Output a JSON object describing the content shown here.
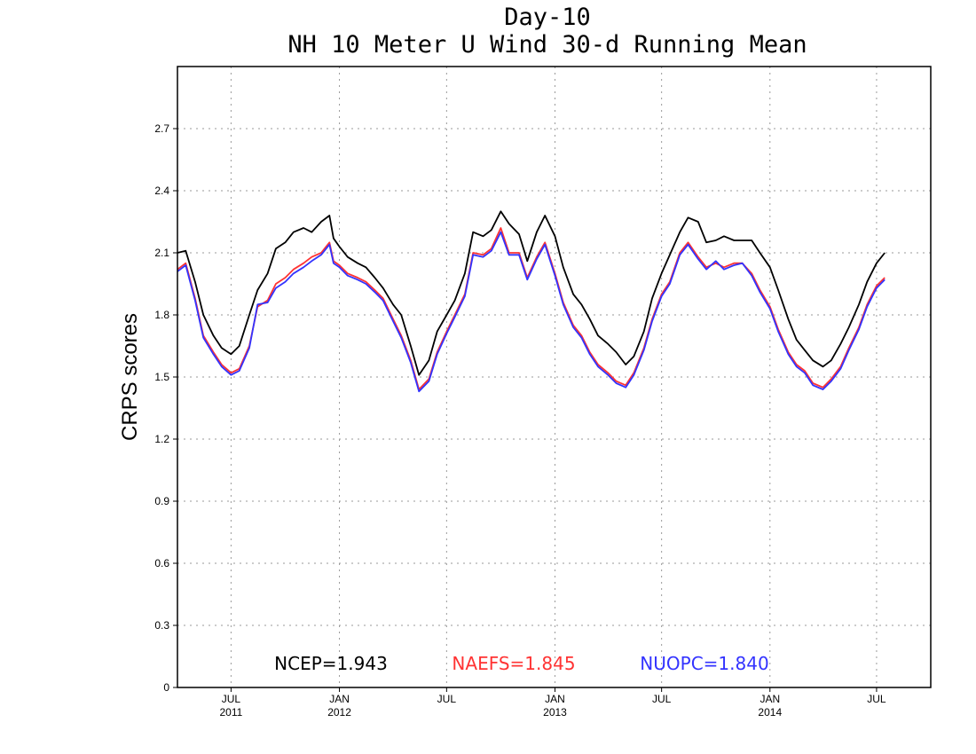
{
  "chart_data": {
    "type": "line",
    "title": "Day-10",
    "subtitle": "NH 10 Meter U Wind 30-d Running Mean",
    "ylabel": "CRPS scores",
    "xlabel": "",
    "ylim": [
      0,
      3.0
    ],
    "yticks": [
      0,
      0.3,
      0.6,
      0.9,
      1.2,
      1.5,
      1.8,
      2.1,
      2.4,
      2.7
    ],
    "ytick_labels": [
      "0",
      "0.3",
      "0.6",
      "0.9",
      "1.2",
      "1.5",
      "1.8",
      "2.1",
      "2.4",
      "2.7"
    ],
    "xlim": [
      "2011-04-01",
      "2014-10-01"
    ],
    "xticks": [
      {
        "date": "2011-07-01",
        "label": "JUL",
        "year": "2011"
      },
      {
        "date": "2012-01-01",
        "label": "JAN",
        "year": "2012"
      },
      {
        "date": "2012-07-01",
        "label": "JUL",
        "year": ""
      },
      {
        "date": "2013-01-01",
        "label": "JAN",
        "year": "2013"
      },
      {
        "date": "2013-07-01",
        "label": "JUL",
        "year": ""
      },
      {
        "date": "2014-01-01",
        "label": "JAN",
        "year": "2014"
      },
      {
        "date": "2014-07-01",
        "label": "JUL",
        "year": ""
      }
    ],
    "grid": true,
    "legend_position": "bottom",
    "series": [
      {
        "name": "NCEP",
        "legend_label": "NCEP=1.943",
        "color": "#000000",
        "points": [
          [
            "2011-04-01",
            2.1
          ],
          [
            "2011-04-15",
            2.11
          ],
          [
            "2011-05-01",
            1.96
          ],
          [
            "2011-05-15",
            1.8
          ],
          [
            "2011-06-01",
            1.7
          ],
          [
            "2011-06-15",
            1.64
          ],
          [
            "2011-07-01",
            1.61
          ],
          [
            "2011-07-15",
            1.65
          ],
          [
            "2011-08-01",
            1.8
          ],
          [
            "2011-08-15",
            1.92
          ],
          [
            "2011-09-01",
            2.0
          ],
          [
            "2011-09-15",
            2.12
          ],
          [
            "2011-10-01",
            2.15
          ],
          [
            "2011-10-15",
            2.2
          ],
          [
            "2011-11-01",
            2.22
          ],
          [
            "2011-11-15",
            2.2
          ],
          [
            "2011-12-01",
            2.25
          ],
          [
            "2011-12-15",
            2.28
          ],
          [
            "2011-12-22",
            2.17
          ],
          [
            "2012-01-01",
            2.13
          ],
          [
            "2012-01-15",
            2.08
          ],
          [
            "2012-02-01",
            2.05
          ],
          [
            "2012-02-15",
            2.03
          ],
          [
            "2012-03-01",
            1.98
          ],
          [
            "2012-03-15",
            1.93
          ],
          [
            "2012-04-01",
            1.85
          ],
          [
            "2012-04-15",
            1.8
          ],
          [
            "2012-05-01",
            1.65
          ],
          [
            "2012-05-15",
            1.51
          ],
          [
            "2012-06-01",
            1.58
          ],
          [
            "2012-06-15",
            1.72
          ],
          [
            "2012-07-01",
            1.8
          ],
          [
            "2012-07-15",
            1.87
          ],
          [
            "2012-08-01",
            2.0
          ],
          [
            "2012-08-15",
            2.2
          ],
          [
            "2012-09-01",
            2.18
          ],
          [
            "2012-09-15",
            2.21
          ],
          [
            "2012-10-01",
            2.3
          ],
          [
            "2012-10-15",
            2.24
          ],
          [
            "2012-11-01",
            2.19
          ],
          [
            "2012-11-15",
            2.06
          ],
          [
            "2012-12-01",
            2.2
          ],
          [
            "2012-12-15",
            2.28
          ],
          [
            "2013-01-01",
            2.18
          ],
          [
            "2013-01-15",
            2.03
          ],
          [
            "2013-02-01",
            1.9
          ],
          [
            "2013-02-15",
            1.85
          ],
          [
            "2013-03-01",
            1.78
          ],
          [
            "2013-03-15",
            1.7
          ],
          [
            "2013-04-01",
            1.66
          ],
          [
            "2013-04-15",
            1.62
          ],
          [
            "2013-05-01",
            1.56
          ],
          [
            "2013-05-15",
            1.6
          ],
          [
            "2013-06-01",
            1.72
          ],
          [
            "2013-06-15",
            1.88
          ],
          [
            "2013-07-01",
            2.0
          ],
          [
            "2013-07-15",
            2.09
          ],
          [
            "2013-08-01",
            2.2
          ],
          [
            "2013-08-15",
            2.27
          ],
          [
            "2013-09-01",
            2.25
          ],
          [
            "2013-09-15",
            2.15
          ],
          [
            "2013-10-01",
            2.16
          ],
          [
            "2013-10-15",
            2.18
          ],
          [
            "2013-11-01",
            2.16
          ],
          [
            "2013-11-15",
            2.16
          ],
          [
            "2013-12-01",
            2.16
          ],
          [
            "2013-12-15",
            2.1
          ],
          [
            "2014-01-01",
            2.03
          ],
          [
            "2014-01-15",
            1.92
          ],
          [
            "2014-02-01",
            1.78
          ],
          [
            "2014-02-15",
            1.68
          ],
          [
            "2014-03-01",
            1.63
          ],
          [
            "2014-03-15",
            1.58
          ],
          [
            "2014-04-01",
            1.55
          ],
          [
            "2014-04-15",
            1.58
          ],
          [
            "2014-05-01",
            1.66
          ],
          [
            "2014-05-15",
            1.74
          ],
          [
            "2014-06-01",
            1.85
          ],
          [
            "2014-06-15",
            1.96
          ],
          [
            "2014-07-01",
            2.05
          ],
          [
            "2014-07-15",
            2.1
          ]
        ]
      },
      {
        "name": "NAEFS",
        "legend_label": "NAEFS=1.845",
        "color": "#ff3333",
        "points": [
          [
            "2011-04-01",
            2.02
          ],
          [
            "2011-04-15",
            2.05
          ],
          [
            "2011-05-01",
            1.88
          ],
          [
            "2011-05-15",
            1.7
          ],
          [
            "2011-06-01",
            1.62
          ],
          [
            "2011-06-15",
            1.56
          ],
          [
            "2011-07-01",
            1.52
          ],
          [
            "2011-07-15",
            1.54
          ],
          [
            "2011-08-01",
            1.65
          ],
          [
            "2011-08-15",
            1.84
          ],
          [
            "2011-09-01",
            1.87
          ],
          [
            "2011-09-15",
            1.95
          ],
          [
            "2011-10-01",
            1.98
          ],
          [
            "2011-10-15",
            2.02
          ],
          [
            "2011-11-01",
            2.05
          ],
          [
            "2011-11-15",
            2.08
          ],
          [
            "2011-12-01",
            2.1
          ],
          [
            "2011-12-15",
            2.15
          ],
          [
            "2011-12-22",
            2.06
          ],
          [
            "2012-01-01",
            2.04
          ],
          [
            "2012-01-15",
            2.0
          ],
          [
            "2012-02-01",
            1.98
          ],
          [
            "2012-02-15",
            1.96
          ],
          [
            "2012-03-01",
            1.92
          ],
          [
            "2012-03-15",
            1.88
          ],
          [
            "2012-04-01",
            1.78
          ],
          [
            "2012-04-15",
            1.7
          ],
          [
            "2012-05-01",
            1.58
          ],
          [
            "2012-05-15",
            1.44
          ],
          [
            "2012-06-01",
            1.49
          ],
          [
            "2012-06-15",
            1.62
          ],
          [
            "2012-07-01",
            1.72
          ],
          [
            "2012-07-15",
            1.8
          ],
          [
            "2012-08-01",
            1.9
          ],
          [
            "2012-08-15",
            2.1
          ],
          [
            "2012-09-01",
            2.09
          ],
          [
            "2012-09-15",
            2.12
          ],
          [
            "2012-10-01",
            2.22
          ],
          [
            "2012-10-15",
            2.1
          ],
          [
            "2012-11-01",
            2.1
          ],
          [
            "2012-11-15",
            1.98
          ],
          [
            "2012-12-01",
            2.08
          ],
          [
            "2012-12-15",
            2.15
          ],
          [
            "2013-01-01",
            2.0
          ],
          [
            "2013-01-15",
            1.86
          ],
          [
            "2013-02-01",
            1.75
          ],
          [
            "2013-02-15",
            1.7
          ],
          [
            "2013-03-01",
            1.62
          ],
          [
            "2013-03-15",
            1.56
          ],
          [
            "2013-04-01",
            1.52
          ],
          [
            "2013-04-15",
            1.48
          ],
          [
            "2013-05-01",
            1.46
          ],
          [
            "2013-05-15",
            1.52
          ],
          [
            "2013-06-01",
            1.64
          ],
          [
            "2013-06-15",
            1.78
          ],
          [
            "2013-07-01",
            1.9
          ],
          [
            "2013-07-15",
            1.96
          ],
          [
            "2013-08-01",
            2.1
          ],
          [
            "2013-08-15",
            2.15
          ],
          [
            "2013-09-01",
            2.08
          ],
          [
            "2013-09-15",
            2.03
          ],
          [
            "2013-10-01",
            2.05
          ],
          [
            "2013-10-15",
            2.03
          ],
          [
            "2013-11-01",
            2.05
          ],
          [
            "2013-11-15",
            2.05
          ],
          [
            "2013-12-01",
            2.0
          ],
          [
            "2013-12-15",
            1.92
          ],
          [
            "2014-01-01",
            1.84
          ],
          [
            "2014-01-15",
            1.73
          ],
          [
            "2014-02-01",
            1.62
          ],
          [
            "2014-02-15",
            1.56
          ],
          [
            "2014-03-01",
            1.53
          ],
          [
            "2014-03-15",
            1.47
          ],
          [
            "2014-04-01",
            1.45
          ],
          [
            "2014-04-15",
            1.49
          ],
          [
            "2014-05-01",
            1.55
          ],
          [
            "2014-05-15",
            1.64
          ],
          [
            "2014-06-01",
            1.74
          ],
          [
            "2014-06-15",
            1.85
          ],
          [
            "2014-07-01",
            1.94
          ],
          [
            "2014-07-15",
            1.98
          ]
        ]
      },
      {
        "name": "NUOPC",
        "legend_label": "NUOPC=1.840",
        "color": "#3333ff",
        "points": [
          [
            "2011-04-01",
            2.01
          ],
          [
            "2011-04-15",
            2.04
          ],
          [
            "2011-05-01",
            1.87
          ],
          [
            "2011-05-15",
            1.69
          ],
          [
            "2011-06-01",
            1.61
          ],
          [
            "2011-06-15",
            1.55
          ],
          [
            "2011-07-01",
            1.51
          ],
          [
            "2011-07-15",
            1.53
          ],
          [
            "2011-08-01",
            1.64
          ],
          [
            "2011-08-15",
            1.85
          ],
          [
            "2011-09-01",
            1.86
          ],
          [
            "2011-09-15",
            1.93
          ],
          [
            "2011-10-01",
            1.96
          ],
          [
            "2011-10-15",
            2.0
          ],
          [
            "2011-11-01",
            2.03
          ],
          [
            "2011-11-15",
            2.06
          ],
          [
            "2011-12-01",
            2.09
          ],
          [
            "2011-12-15",
            2.14
          ],
          [
            "2011-12-22",
            2.05
          ],
          [
            "2012-01-01",
            2.03
          ],
          [
            "2012-01-15",
            1.99
          ],
          [
            "2012-02-01",
            1.97
          ],
          [
            "2012-02-15",
            1.95
          ],
          [
            "2012-03-01",
            1.91
          ],
          [
            "2012-03-15",
            1.87
          ],
          [
            "2012-04-01",
            1.77
          ],
          [
            "2012-04-15",
            1.69
          ],
          [
            "2012-05-01",
            1.57
          ],
          [
            "2012-05-15",
            1.43
          ],
          [
            "2012-06-01",
            1.48
          ],
          [
            "2012-06-15",
            1.61
          ],
          [
            "2012-07-01",
            1.71
          ],
          [
            "2012-07-15",
            1.79
          ],
          [
            "2012-08-01",
            1.89
          ],
          [
            "2012-08-15",
            2.09
          ],
          [
            "2012-09-01",
            2.08
          ],
          [
            "2012-09-15",
            2.11
          ],
          [
            "2012-10-01",
            2.2
          ],
          [
            "2012-10-15",
            2.09
          ],
          [
            "2012-11-01",
            2.09
          ],
          [
            "2012-11-15",
            1.97
          ],
          [
            "2012-12-01",
            2.07
          ],
          [
            "2012-12-15",
            2.14
          ],
          [
            "2013-01-01",
            1.99
          ],
          [
            "2013-01-15",
            1.85
          ],
          [
            "2013-02-01",
            1.74
          ],
          [
            "2013-02-15",
            1.69
          ],
          [
            "2013-03-01",
            1.61
          ],
          [
            "2013-03-15",
            1.55
          ],
          [
            "2013-04-01",
            1.51
          ],
          [
            "2013-04-15",
            1.47
          ],
          [
            "2013-05-01",
            1.45
          ],
          [
            "2013-05-15",
            1.51
          ],
          [
            "2013-06-01",
            1.63
          ],
          [
            "2013-06-15",
            1.77
          ],
          [
            "2013-07-01",
            1.89
          ],
          [
            "2013-07-15",
            1.95
          ],
          [
            "2013-08-01",
            2.09
          ],
          [
            "2013-08-15",
            2.14
          ],
          [
            "2013-09-01",
            2.07
          ],
          [
            "2013-09-15",
            2.02
          ],
          [
            "2013-10-01",
            2.06
          ],
          [
            "2013-10-15",
            2.02
          ],
          [
            "2013-11-01",
            2.04
          ],
          [
            "2013-11-15",
            2.05
          ],
          [
            "2013-12-01",
            1.99
          ],
          [
            "2013-12-15",
            1.91
          ],
          [
            "2014-01-01",
            1.83
          ],
          [
            "2014-01-15",
            1.72
          ],
          [
            "2014-02-01",
            1.61
          ],
          [
            "2014-02-15",
            1.55
          ],
          [
            "2014-03-01",
            1.52
          ],
          [
            "2014-03-15",
            1.46
          ],
          [
            "2014-04-01",
            1.44
          ],
          [
            "2014-04-15",
            1.48
          ],
          [
            "2014-05-01",
            1.54
          ],
          [
            "2014-05-15",
            1.63
          ],
          [
            "2014-06-01",
            1.73
          ],
          [
            "2014-06-15",
            1.84
          ],
          [
            "2014-07-01",
            1.93
          ],
          [
            "2014-07-15",
            1.97
          ]
        ]
      }
    ]
  }
}
